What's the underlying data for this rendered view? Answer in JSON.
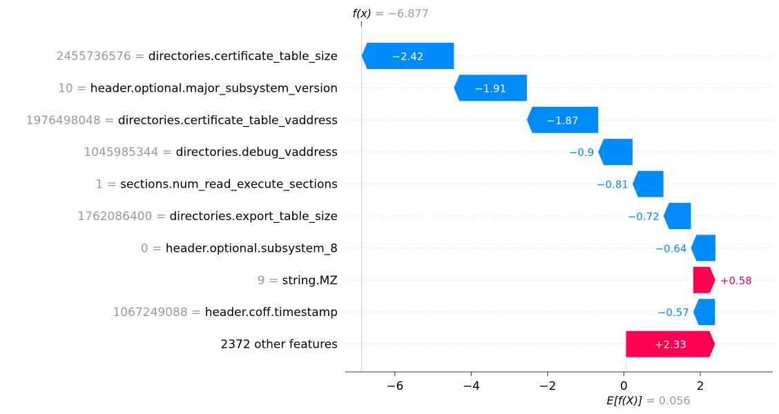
{
  "colors": {
    "negative": "#008bfb",
    "positive": "#ff0051",
    "grey_text": "#999999",
    "grid": "#cccccc"
  },
  "chart_data": {
    "type": "waterfall",
    "fx_prefix": "f(x)",
    "fx_value": "= −6.877",
    "base_prefix": "E[f(X)]",
    "base_value": "= 0.056",
    "base": 0.056,
    "final": -6.877,
    "xlim": [
      -7.3,
      3.9
    ],
    "xticks": [
      -6,
      -4,
      -2,
      0,
      2
    ],
    "xtick_labels": [
      "−6",
      "−4",
      "−2",
      "0",
      "2"
    ],
    "features": [
      {
        "value": "2455736576",
        "name": "directories.certificate_table_size",
        "shap": -2.42,
        "label": "−2.42"
      },
      {
        "value": "10",
        "name": "header.optional.major_subsystem_version",
        "shap": -1.91,
        "label": "−1.91"
      },
      {
        "value": "1976498048",
        "name": "directories.certificate_table_vaddress",
        "shap": -1.87,
        "label": "−1.87"
      },
      {
        "value": "1045985344",
        "name": "directories.debug_vaddress",
        "shap": -0.9,
        "label": "−0.9"
      },
      {
        "value": "1",
        "name": "sections.num_read_execute_sections",
        "shap": -0.81,
        "label": "−0.81"
      },
      {
        "value": "1762086400",
        "name": "directories.export_table_size",
        "shap": -0.72,
        "label": "−0.72"
      },
      {
        "value": "0",
        "name": "header.optional.subsystem_8",
        "shap": -0.64,
        "label": "−0.64"
      },
      {
        "value": "9",
        "name": "string.MZ",
        "shap": 0.58,
        "label": "+0.58"
      },
      {
        "value": "1067249088",
        "name": "header.coff.timestamp",
        "shap": -0.57,
        "label": "−0.57"
      },
      {
        "value": "",
        "name": "2372 other features",
        "shap": 2.33,
        "label": "+2.33"
      }
    ]
  }
}
